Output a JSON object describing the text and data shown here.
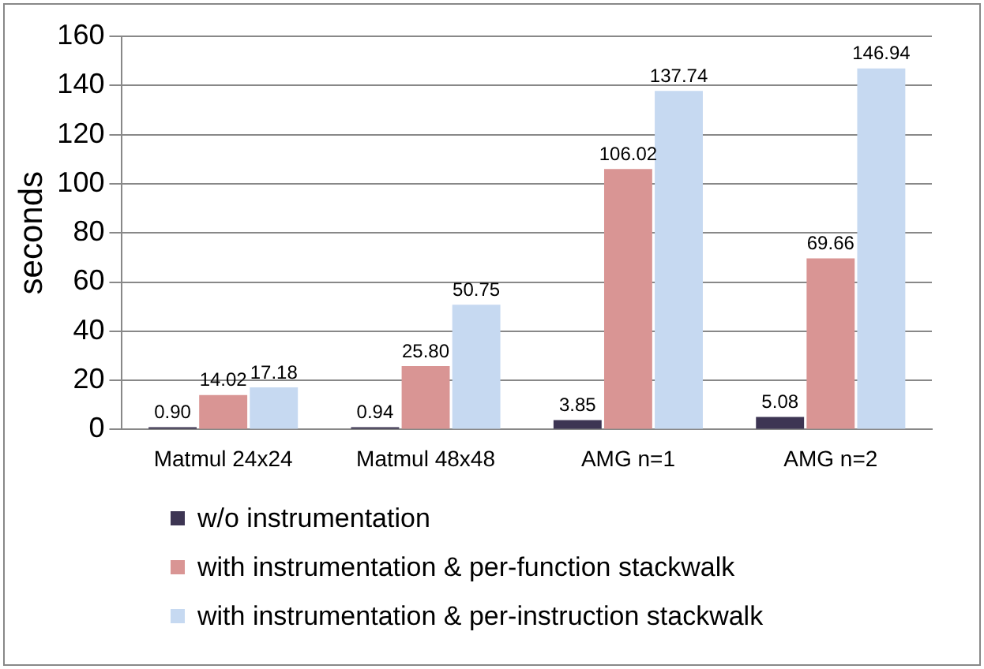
{
  "chart_data": {
    "type": "bar",
    "ylabel": "seconds",
    "categories": [
      "Matmul 24x24",
      "Matmul 48x48",
      "AMG n=1",
      "AMG n=2"
    ],
    "series": [
      {
        "name": "w/o instrumentation",
        "color": "#3d3553",
        "values": [
          0.9,
          0.94,
          3.85,
          5.08
        ],
        "value_labels": [
          "0.90",
          "0.94",
          "3.85",
          "5.08"
        ]
      },
      {
        "name": "with instrumentation & per-function stackwalk",
        "color": "#d99594",
        "values": [
          14.02,
          25.8,
          106.02,
          69.66
        ],
        "value_labels": [
          "14.02",
          "25.80",
          "106.02",
          "69.66"
        ]
      },
      {
        "name": "with instrumentation & per-instruction stackwalk",
        "color": "#c6d9f1",
        "values": [
          17.18,
          50.75,
          137.74,
          146.94
        ],
        "value_labels": [
          "17.18",
          "50.75",
          "137.74",
          "146.94"
        ]
      }
    ],
    "ylim": [
      0,
      160
    ],
    "yticks": [
      0,
      20,
      40,
      60,
      80,
      100,
      120,
      140,
      160
    ],
    "grid": "y",
    "legend": "bottom"
  }
}
